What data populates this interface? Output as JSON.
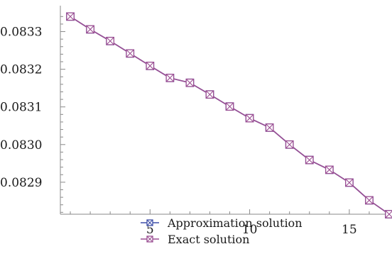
{
  "chart_data": {
    "type": "line",
    "x": [
      1,
      2,
      3,
      4,
      5,
      6,
      7,
      8,
      9,
      10,
      11,
      12,
      13,
      14,
      15,
      16,
      17
    ],
    "series": [
      {
        "name": "Approximation solution",
        "color": "#3f4fa8",
        "marker": "square-x",
        "values": [
          0.08334,
          0.083306,
          0.083275,
          0.083242,
          0.083209,
          0.083177,
          0.083164,
          0.083133,
          0.083101,
          0.08307,
          0.083045,
          0.083,
          0.082959,
          0.082933,
          0.082899,
          0.082852,
          0.082815
        ]
      },
      {
        "name": "Exact solution",
        "color": "#9b4f93",
        "marker": "square-x",
        "values": [
          0.08334,
          0.083306,
          0.083275,
          0.083242,
          0.083209,
          0.083177,
          0.083164,
          0.083133,
          0.083101,
          0.08307,
          0.083045,
          0.083,
          0.082959,
          0.082933,
          0.082899,
          0.082852,
          0.082815
        ]
      }
    ],
    "xlim": [
      0.5,
      17
    ],
    "ylim": [
      0.082815,
      0.08335
    ],
    "x_ticks": [
      5,
      10,
      15
    ],
    "x_tick_labels": [
      "5",
      "10",
      "15"
    ],
    "y_ticks": [
      0.0829,
      0.083,
      0.0831,
      0.0832,
      0.0833
    ],
    "y_tick_labels": [
      "0.0829",
      "0.0830",
      "0.0831",
      "0.0832",
      "0.0833"
    ],
    "title": "",
    "xlabel": "",
    "ylabel": "",
    "grid": false,
    "legend_position": "bottom-center"
  }
}
